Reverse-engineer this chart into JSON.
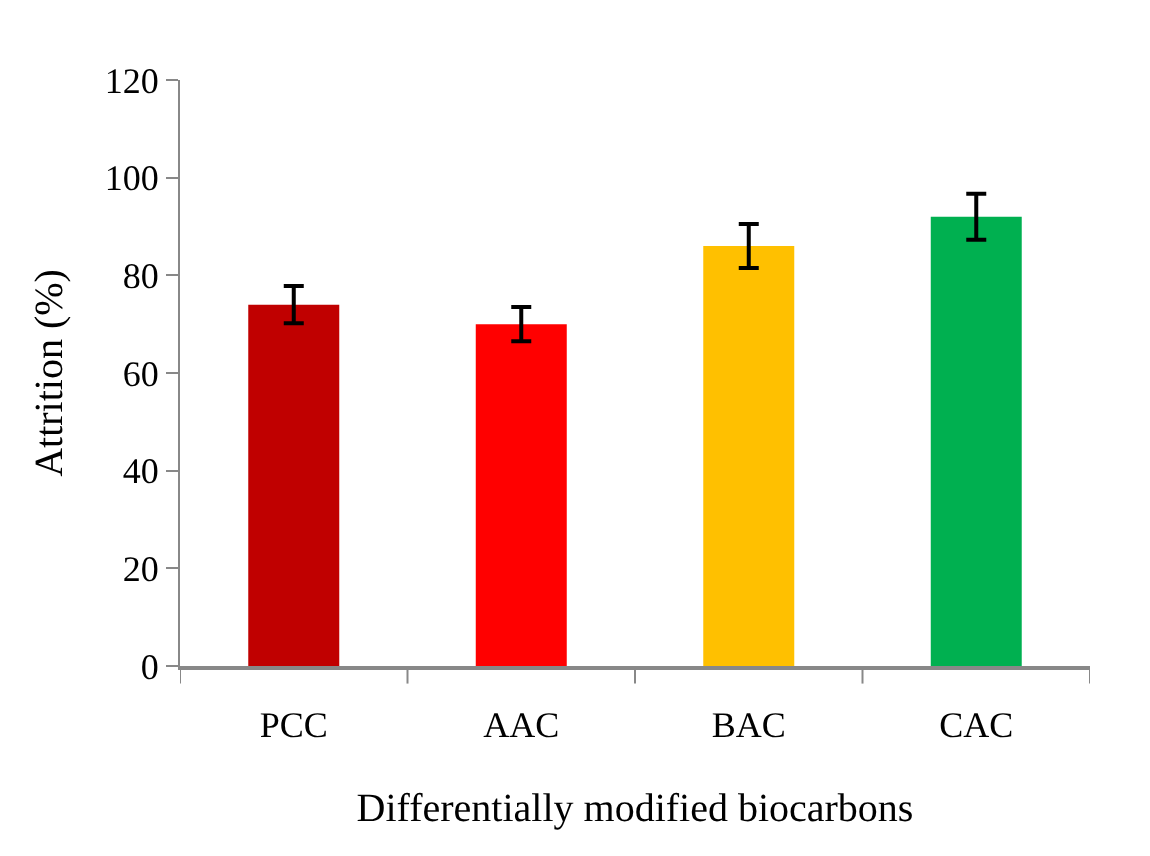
{
  "chart_data": {
    "type": "bar",
    "xlabel": "Differentially modified biocarbons",
    "ylabel": "Attrition (%)",
    "categories": [
      "PCC",
      "AAC",
      "BAC",
      "CAC"
    ],
    "values": [
      74,
      70,
      86,
      92
    ],
    "colors": [
      "#c00000",
      "#ff0000",
      "#ffc000",
      "#00b050"
    ],
    "errors": [
      3.8,
      3.5,
      4.5,
      4.7
    ],
    "ylim": [
      0,
      120
    ],
    "yticks": [
      0,
      20,
      40,
      60,
      80,
      100,
      120
    ],
    "legend": false
  }
}
